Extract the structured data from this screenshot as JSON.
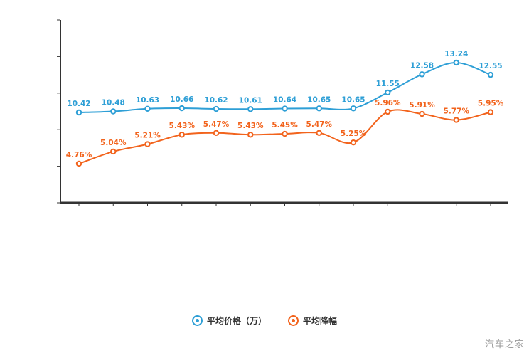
{
  "watermark": "汽车之家",
  "axis_color": "#333333",
  "chart_data": {
    "type": "line",
    "title": "",
    "grid": false,
    "legend_position": "bottom",
    "series": [
      {
        "name": "平均价格（万）",
        "color": "#2e9fd6",
        "suffix": "",
        "values": [
          10.42,
          10.48,
          10.63,
          10.66,
          10.62,
          10.61,
          10.64,
          10.65,
          10.65,
          11.55,
          12.58,
          13.24,
          12.55
        ]
      },
      {
        "name": "平均降幅",
        "color": "#f2631c",
        "suffix": "%",
        "values": [
          4.76,
          5.04,
          5.21,
          5.43,
          5.47,
          5.43,
          5.45,
          5.47,
          5.25,
          5.96,
          5.91,
          5.77,
          5.95
        ]
      }
    ]
  }
}
